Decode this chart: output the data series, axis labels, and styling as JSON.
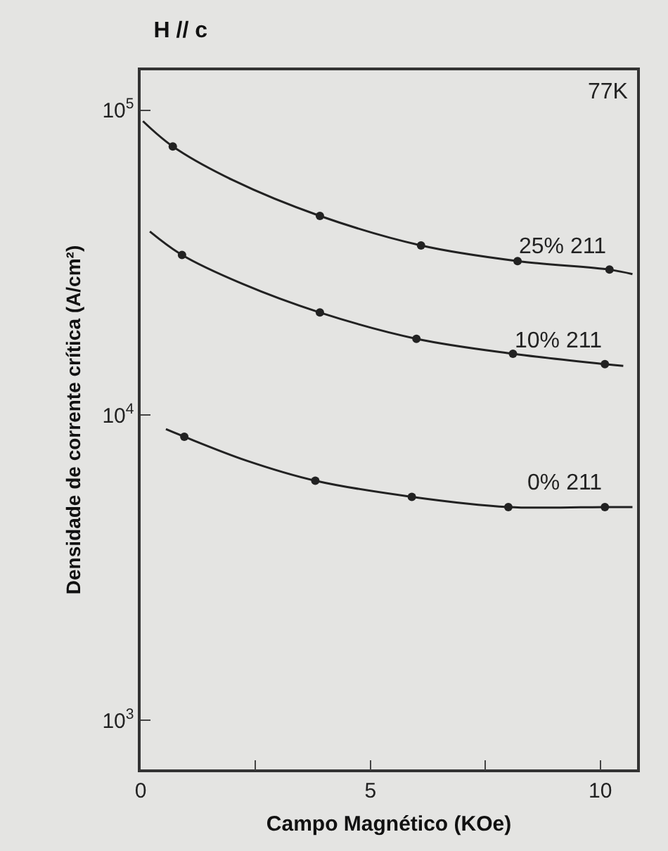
{
  "chart_data": {
    "type": "scatter",
    "title": "H // c",
    "xlabel": "Campo Magnético (KOe)",
    "ylabel": "Densidade de corrente crítica (A/cm²)",
    "annotations": [
      "77K"
    ],
    "log": "y",
    "grid": false,
    "xlim": [
      0,
      10.8
    ],
    "xticks": [
      0,
      {
        "value": 2.5,
        "label": null
      },
      5,
      {
        "value": 7.5,
        "label": null
      },
      10
    ],
    "ylim": [
      690,
      135000
    ],
    "yticks": [
      {
        "value": 1000,
        "label": "10$^{3}$"
      },
      {
        "value": 10000,
        "label": "10$^{4}$"
      },
      {
        "value": 100000,
        "label": "10$^{5}$"
      }
    ],
    "series": [
      {
        "name": "25% 211",
        "marker": "circle",
        "color": "#222222",
        "x": [
          0.7,
          3.9,
          6.1,
          8.2,
          10.2
        ],
        "values": [
          76000,
          45000,
          36000,
          32000,
          30000
        ]
      },
      {
        "type": "line",
        "color": "#222222",
        "x": [
          0.05,
          0.7,
          2.0,
          3.9,
          6.1,
          8.2,
          10.2,
          10.7
        ],
        "values": [
          92000,
          76000,
          59000,
          45000,
          36000,
          32000,
          30000,
          29000
        ]
      },
      {
        "name": "10% 211",
        "marker": "circle",
        "color": "#222222",
        "x": [
          0.9,
          3.9,
          6.0,
          8.1,
          10.1
        ],
        "values": [
          33500,
          21700,
          17800,
          15900,
          14700
        ]
      },
      {
        "type": "line",
        "color": "#222222",
        "x": [
          0.2,
          0.9,
          2.2,
          3.9,
          6.0,
          8.1,
          10.1,
          10.5
        ],
        "values": [
          40000,
          33500,
          27000,
          21700,
          17800,
          15900,
          14700,
          14500
        ]
      },
      {
        "name": "0% 211",
        "marker": "circle",
        "color": "#222222",
        "x": [
          0.95,
          3.8,
          5.9,
          8.0,
          10.1
        ],
        "values": [
          8500,
          6100,
          5400,
          5000,
          5000
        ]
      },
      {
        "type": "line",
        "color": "#222222",
        "x": [
          0.55,
          0.95,
          2.3,
          3.8,
          5.9,
          8.0,
          10.1,
          10.7
        ],
        "values": [
          9000,
          8500,
          7100,
          6100,
          5400,
          5000,
          5000,
          5000
        ]
      }
    ]
  }
}
